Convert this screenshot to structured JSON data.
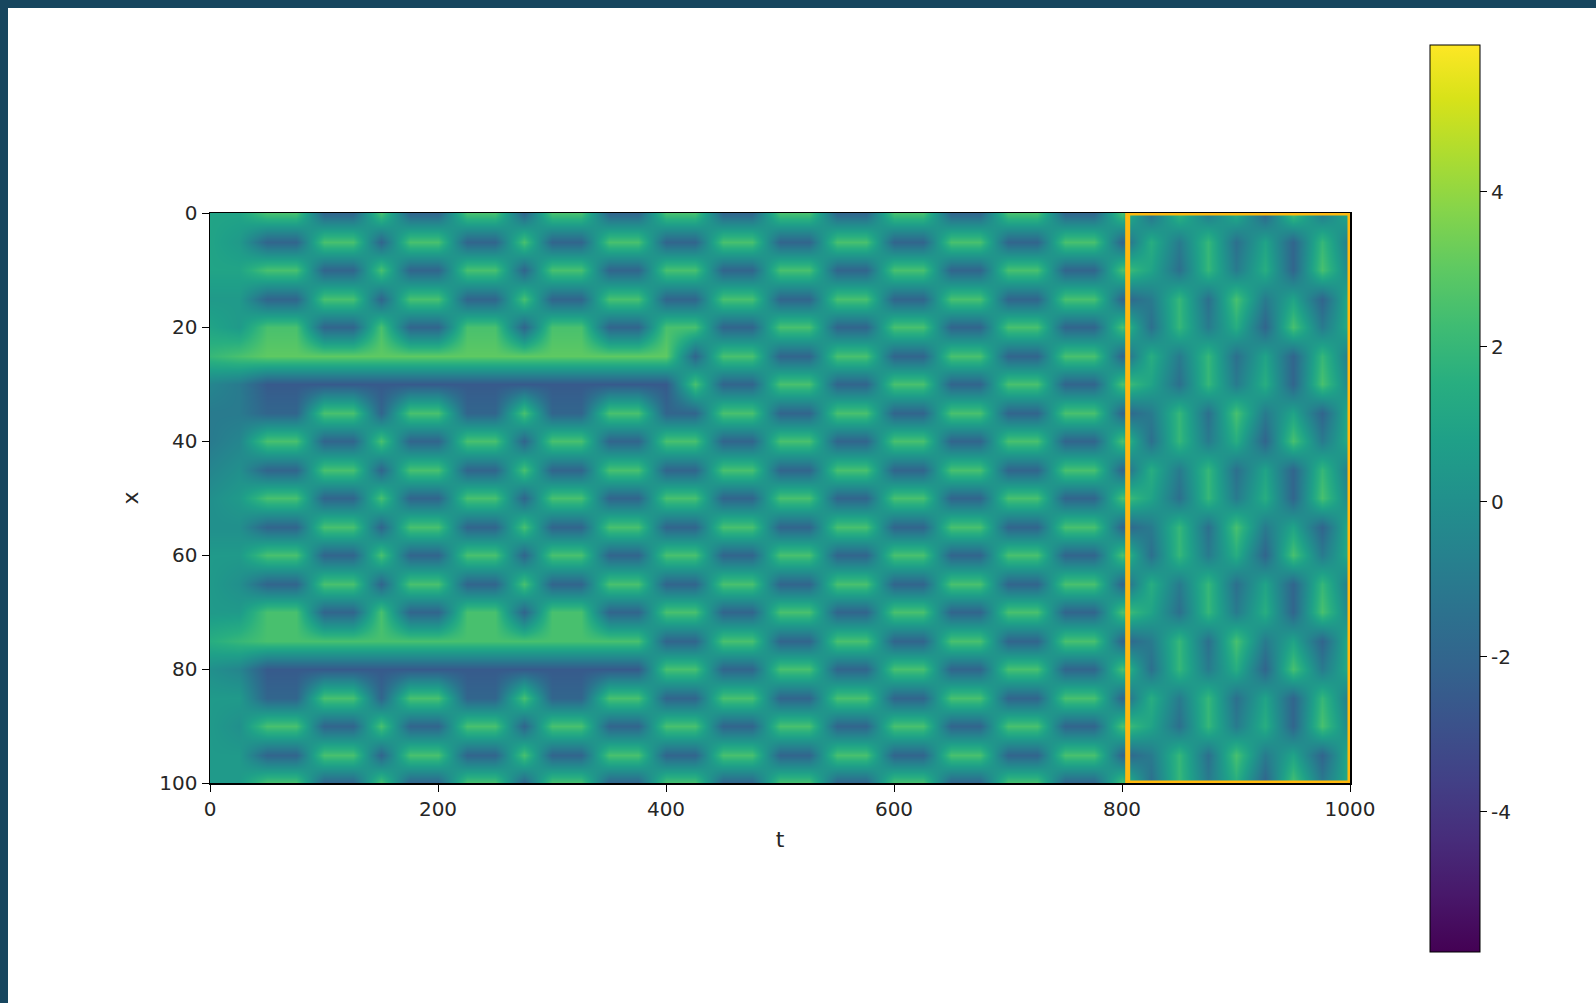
{
  "chart_data": {
    "type": "heatmap",
    "x_label": "t",
    "y_label": "x",
    "color": "Viridis",
    "x": [
      0,
      25,
      50,
      75,
      100,
      125,
      150,
      175,
      200,
      225,
      250,
      275,
      300,
      325,
      350,
      375,
      400,
      425,
      450,
      475,
      500,
      525,
      550,
      575,
      600,
      625,
      650,
      675,
      700,
      725,
      750,
      775,
      800,
      825,
      850,
      875,
      900,
      925,
      950,
      975,
      1000
    ],
    "y": [
      0,
      5,
      10,
      15,
      20,
      25,
      30,
      35,
      40,
      45,
      50,
      55,
      60,
      65,
      70,
      75,
      80,
      85,
      90,
      95,
      100
    ],
    "z": [
      [
        1,
        1,
        2.5,
        2.5,
        -2,
        -2,
        2.5,
        -2,
        -2,
        2.5,
        2.5,
        -2,
        2.5,
        2.5,
        -2,
        -2,
        2.5,
        2.5,
        -2,
        -2,
        2.5,
        2.5,
        -2,
        -2,
        2.5,
        2.5,
        -2,
        -2,
        2.5,
        2.5,
        -2,
        -2,
        2.5,
        -1.5,
        2,
        -1,
        1.5,
        -2,
        2.5,
        -1,
        1.5
      ],
      [
        1,
        0.5,
        -2,
        -2,
        2.5,
        2.5,
        -2,
        2.5,
        2.5,
        -2,
        -2,
        2.5,
        -2,
        -2,
        2.5,
        2.5,
        -2,
        -2,
        2.5,
        2.5,
        -2,
        -2,
        2.5,
        2.5,
        -2,
        -2,
        2.5,
        2.5,
        -2,
        -2,
        2.5,
        2.5,
        -2,
        1.5,
        -1,
        2,
        -1.5,
        1,
        -2,
        2,
        -1
      ],
      [
        1,
        1,
        2.5,
        2.5,
        -2,
        -2,
        2.5,
        -2,
        -2,
        2.5,
        2.5,
        -2,
        2.5,
        2.5,
        -2,
        -2,
        2.5,
        2.5,
        -2,
        -2,
        2.5,
        2.5,
        -2,
        -2,
        2.5,
        2.5,
        -2,
        -2,
        2.5,
        2.5,
        -2,
        -2,
        2.5,
        1,
        -1.5,
        2,
        -1,
        1.5,
        -2,
        2.5,
        -0.5
      ],
      [
        0.5,
        0.5,
        -2,
        -2,
        2.5,
        2.5,
        -2,
        2.5,
        2.5,
        -2,
        -2,
        2.5,
        -2,
        -2,
        2.5,
        2.5,
        -2,
        -2,
        2.5,
        2.5,
        -2,
        -2,
        2.5,
        2.5,
        -2,
        -2,
        2.5,
        2.5,
        -2,
        -2,
        2.5,
        2.5,
        -2,
        -1,
        2,
        -1.5,
        2.5,
        -1,
        1,
        -2,
        1.5
      ],
      [
        1,
        0.5,
        2.5,
        2.5,
        -2,
        -2,
        2.5,
        -2,
        -2,
        2.5,
        2.5,
        -2,
        2.5,
        2.5,
        -2,
        -2,
        2.5,
        2.5,
        -2,
        -2,
        2.5,
        2.5,
        -2,
        -2,
        2.5,
        2.5,
        -2,
        -2,
        2.5,
        2.5,
        -2,
        -2,
        2.5,
        -1.5,
        2,
        -1,
        1.5,
        -2,
        2.5,
        -1,
        1.5
      ],
      [
        2,
        2.5,
        3,
        3,
        3,
        3,
        3,
        3,
        3,
        3,
        3,
        3,
        3,
        3,
        3,
        3,
        3,
        -2,
        2.5,
        2.5,
        -2,
        -2,
        2.5,
        2.5,
        -2,
        -2,
        2.5,
        2.5,
        -2,
        -2,
        2.5,
        2.5,
        -2,
        1.5,
        -1,
        2,
        -1.5,
        1,
        -2,
        2,
        -1
      ],
      [
        -0.5,
        -1,
        -2.5,
        -2.5,
        -2.5,
        -2.5,
        -2.5,
        -2.5,
        -2.5,
        -2.5,
        -2.5,
        -2.5,
        -2.5,
        -2.5,
        -2.5,
        -2.5,
        -2.5,
        2.5,
        -2,
        -2,
        2.5,
        2.5,
        -2,
        -2,
        2.5,
        2.5,
        -2,
        -2,
        2.5,
        2.5,
        -2,
        -2,
        2.5,
        1,
        -1.5,
        2,
        -1,
        1.5,
        -2,
        2.5,
        -0.5
      ],
      [
        -1,
        -1,
        -2,
        -2,
        2.5,
        2.5,
        -2,
        2.5,
        2.5,
        -2,
        -2,
        2.5,
        -2,
        -2,
        2.5,
        2.5,
        -2,
        -2,
        2.5,
        2.5,
        -2,
        -2,
        2.5,
        2.5,
        -2,
        -2,
        2.5,
        2.5,
        -2,
        -2,
        2.5,
        2.5,
        -2,
        -1,
        2,
        -1.5,
        2.5,
        -1,
        1,
        -2,
        1.5
      ],
      [
        -1,
        -0.5,
        2.5,
        2.5,
        -2,
        -2,
        2.5,
        -2,
        -2,
        2.5,
        2.5,
        -2,
        2.5,
        2.5,
        -2,
        -2,
        2.5,
        2.5,
        -2,
        -2,
        2.5,
        2.5,
        -2,
        -2,
        2.5,
        2.5,
        -2,
        -2,
        2.5,
        2.5,
        -2,
        -2,
        2.5,
        -1.5,
        2,
        -1,
        1.5,
        -2,
        2.5,
        -1,
        1.5
      ],
      [
        -0.5,
        0,
        -2,
        -2,
        2.5,
        2.5,
        -2,
        2.5,
        2.5,
        -2,
        -2,
        2.5,
        -2,
        -2,
        2.5,
        2.5,
        -2,
        -2,
        2.5,
        2.5,
        -2,
        -2,
        2.5,
        2.5,
        -2,
        -2,
        2.5,
        2.5,
        -2,
        -2,
        2.5,
        2.5,
        -2,
        1.5,
        -1,
        2,
        -1.5,
        1,
        -2,
        2,
        -1
      ],
      [
        0,
        0.5,
        2.5,
        2.5,
        -2,
        -2,
        2.5,
        -2,
        -2,
        2.5,
        2.5,
        -2,
        2.5,
        2.5,
        -2,
        -2,
        2.5,
        2.5,
        -2,
        -2,
        2.5,
        2.5,
        -2,
        -2,
        2.5,
        2.5,
        -2,
        -2,
        2.5,
        2.5,
        -2,
        -2,
        2.5,
        1,
        -1.5,
        2,
        -1,
        1.5,
        -2,
        2.5,
        -0.5
      ],
      [
        0,
        0,
        -2,
        -2,
        2.5,
        2.5,
        -2,
        2.5,
        2.5,
        -2,
        -2,
        2.5,
        -2,
        -2,
        2.5,
        2.5,
        -2,
        -2,
        2.5,
        2.5,
        -2,
        -2,
        2.5,
        2.5,
        -2,
        -2,
        2.5,
        2.5,
        -2,
        -2,
        2.5,
        2.5,
        -2,
        -1,
        2,
        -1.5,
        2.5,
        -1,
        1,
        -2,
        1.5
      ],
      [
        0.5,
        0.5,
        2.5,
        2.5,
        -2,
        -2,
        2.5,
        -2,
        -2,
        2.5,
        2.5,
        -2,
        2.5,
        2.5,
        -2,
        -2,
        2.5,
        2.5,
        -2,
        -2,
        2.5,
        2.5,
        -2,
        -2,
        2.5,
        2.5,
        -2,
        -2,
        2.5,
        2.5,
        -2,
        -2,
        2.5,
        -1.5,
        2,
        -1,
        1.5,
        -2,
        2.5,
        -1,
        1.5
      ],
      [
        0.5,
        0,
        -2,
        -2,
        2.5,
        2.5,
        -2,
        2.5,
        2.5,
        -2,
        -2,
        2.5,
        -2,
        -2,
        2.5,
        2.5,
        -2,
        -2,
        2.5,
        2.5,
        -2,
        -2,
        2.5,
        2.5,
        -2,
        -2,
        2.5,
        2.5,
        -2,
        -2,
        2.5,
        2.5,
        -2,
        1.5,
        -1,
        2,
        -1.5,
        1,
        -2,
        2,
        -1
      ],
      [
        0.5,
        0.5,
        2.5,
        2.5,
        -2,
        -2,
        2.5,
        -2,
        -2,
        2.5,
        2.5,
        -2,
        2.5,
        2.5,
        -2,
        -2,
        2.5,
        2.5,
        -2,
        -2,
        2.5,
        2.5,
        -2,
        -2,
        2.5,
        2.5,
        -2,
        -2,
        2.5,
        2.5,
        -2,
        -2,
        2.5,
        1,
        -1.5,
        2,
        -1,
        1.5,
        -2,
        2.5,
        -0.5
      ],
      [
        1.5,
        2,
        2.5,
        2.5,
        2.5,
        2.5,
        2.5,
        2.5,
        2.5,
        2.5,
        2.5,
        2.5,
        2.5,
        2.5,
        2.5,
        2.5,
        -2,
        -2,
        2.5,
        2.5,
        -2,
        -2,
        2.5,
        2.5,
        -2,
        -2,
        2.5,
        2.5,
        -2,
        -2,
        2.5,
        2.5,
        -2,
        -1,
        2,
        -1.5,
        2.5,
        -1,
        1,
        -2,
        1.5
      ],
      [
        0,
        -0.5,
        -2.5,
        -2.5,
        -2.5,
        -2.5,
        -2.5,
        -2.5,
        -2.5,
        -2.5,
        -2.5,
        -2.5,
        -2.5,
        -2.5,
        -2.5,
        -2.5,
        2.5,
        2.5,
        -2,
        -2,
        2.5,
        2.5,
        -2,
        -2,
        2.5,
        2.5,
        -2,
        -2,
        2.5,
        2.5,
        -2,
        -2,
        2.5,
        -1.5,
        2,
        -1,
        1.5,
        -2,
        2.5,
        -1,
        1.5
      ],
      [
        0.5,
        0.5,
        -2,
        -2,
        2.5,
        2.5,
        -2,
        2.5,
        2.5,
        -2,
        -2,
        2.5,
        -2,
        -2,
        2.5,
        2.5,
        -2,
        -2,
        2.5,
        2.5,
        -2,
        -2,
        2.5,
        2.5,
        -2,
        -2,
        2.5,
        2.5,
        -2,
        -2,
        2.5,
        2.5,
        -2,
        1.5,
        -1,
        2,
        -1.5,
        1,
        -2,
        2,
        -1
      ],
      [
        0.5,
        0,
        2.5,
        2.5,
        -2,
        -2,
        2.5,
        -2,
        -2,
        2.5,
        2.5,
        -2,
        2.5,
        2.5,
        -2,
        -2,
        2.5,
        2.5,
        -2,
        -2,
        2.5,
        2.5,
        -2,
        -2,
        2.5,
        2.5,
        -2,
        -2,
        2.5,
        2.5,
        -2,
        -2,
        2.5,
        1,
        -1.5,
        2,
        -1,
        1.5,
        -2,
        2.5,
        -0.5
      ],
      [
        0.5,
        0.5,
        -2,
        -2,
        2.5,
        2.5,
        -2,
        2.5,
        2.5,
        -2,
        -2,
        2.5,
        -2,
        -2,
        2.5,
        2.5,
        -2,
        -2,
        2.5,
        2.5,
        -2,
        -2,
        2.5,
        2.5,
        -2,
        -2,
        2.5,
        2.5,
        -2,
        -2,
        2.5,
        2.5,
        -2,
        -1,
        2,
        -1.5,
        2.5,
        -1,
        1,
        -2,
        1.5
      ],
      [
        0.5,
        0.5,
        2.5,
        2.5,
        -2,
        -2,
        2.5,
        -2,
        -2,
        2.5,
        2.5,
        -2,
        2.5,
        2.5,
        -2,
        -2,
        2.5,
        2.5,
        -2,
        -2,
        2.5,
        2.5,
        -2,
        -2,
        2.5,
        2.5,
        -2,
        -2,
        2.5,
        2.5,
        -2,
        -2,
        2.5,
        -1.5,
        2,
        -1,
        1.5,
        -2,
        2.5,
        -1,
        1.5
      ]
    ],
    "xlim": [
      0,
      1000
    ],
    "ylim": [
      100,
      0
    ],
    "xticks": [
      0,
      200,
      400,
      600,
      800,
      1000
    ],
    "yticks": [
      0,
      20,
      40,
      60,
      80,
      100
    ],
    "zlim": [
      -5.8,
      5.9
    ],
    "zticks": [
      -4,
      -2,
      0,
      2,
      4
    ],
    "highlight": {
      "xlim": [
        805,
        1000
      ],
      "ylim": [
        0,
        100
      ],
      "color": "#ffb90f"
    }
  }
}
